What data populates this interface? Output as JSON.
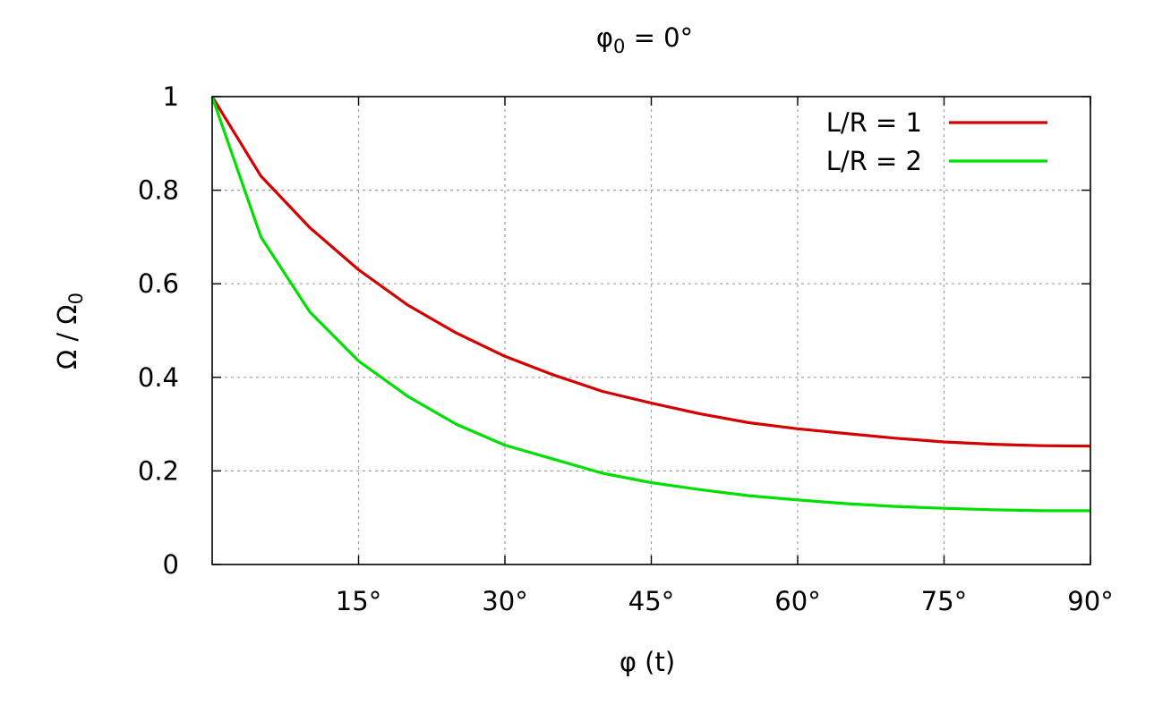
{
  "chart_data": {
    "type": "line",
    "title_main": "φ",
    "title_sub": "0",
    "title_rest": " = 0°",
    "xlabel": "φ (t)",
    "ylabel_main": "Ω / Ω",
    "ylabel_sub": "0",
    "xlim": [
      0,
      90
    ],
    "ylim": [
      0,
      1
    ],
    "x_ticks": [
      15,
      30,
      45,
      60,
      75,
      90
    ],
    "x_tick_labels": [
      "15°",
      "30°",
      "45°",
      "60°",
      "75°",
      "90°"
    ],
    "y_ticks": [
      0,
      0.2,
      0.4,
      0.6,
      0.8,
      1
    ],
    "y_tick_labels": [
      "0",
      "0.2",
      "0.4",
      "0.6",
      "0.8",
      "1"
    ],
    "grid": true,
    "legend_position": "top-right",
    "series": [
      {
        "name": "L/R = 1",
        "color": "#d40000",
        "x": [
          0,
          5,
          10,
          15,
          20,
          25,
          30,
          35,
          40,
          45,
          50,
          55,
          60,
          65,
          70,
          75,
          80,
          85,
          90
        ],
        "y": [
          1.0,
          0.83,
          0.72,
          0.63,
          0.555,
          0.495,
          0.445,
          0.405,
          0.37,
          0.345,
          0.322,
          0.303,
          0.29,
          0.28,
          0.27,
          0.262,
          0.257,
          0.254,
          0.253
        ]
      },
      {
        "name": "L/R = 2",
        "color": "#00e000",
        "x": [
          0,
          5,
          10,
          15,
          20,
          25,
          30,
          35,
          40,
          45,
          50,
          55,
          60,
          65,
          70,
          75,
          80,
          85,
          90
        ],
        "y": [
          1.0,
          0.7,
          0.54,
          0.435,
          0.36,
          0.3,
          0.255,
          0.225,
          0.195,
          0.175,
          0.16,
          0.147,
          0.138,
          0.13,
          0.124,
          0.12,
          0.117,
          0.115,
          0.115
        ]
      }
    ]
  }
}
